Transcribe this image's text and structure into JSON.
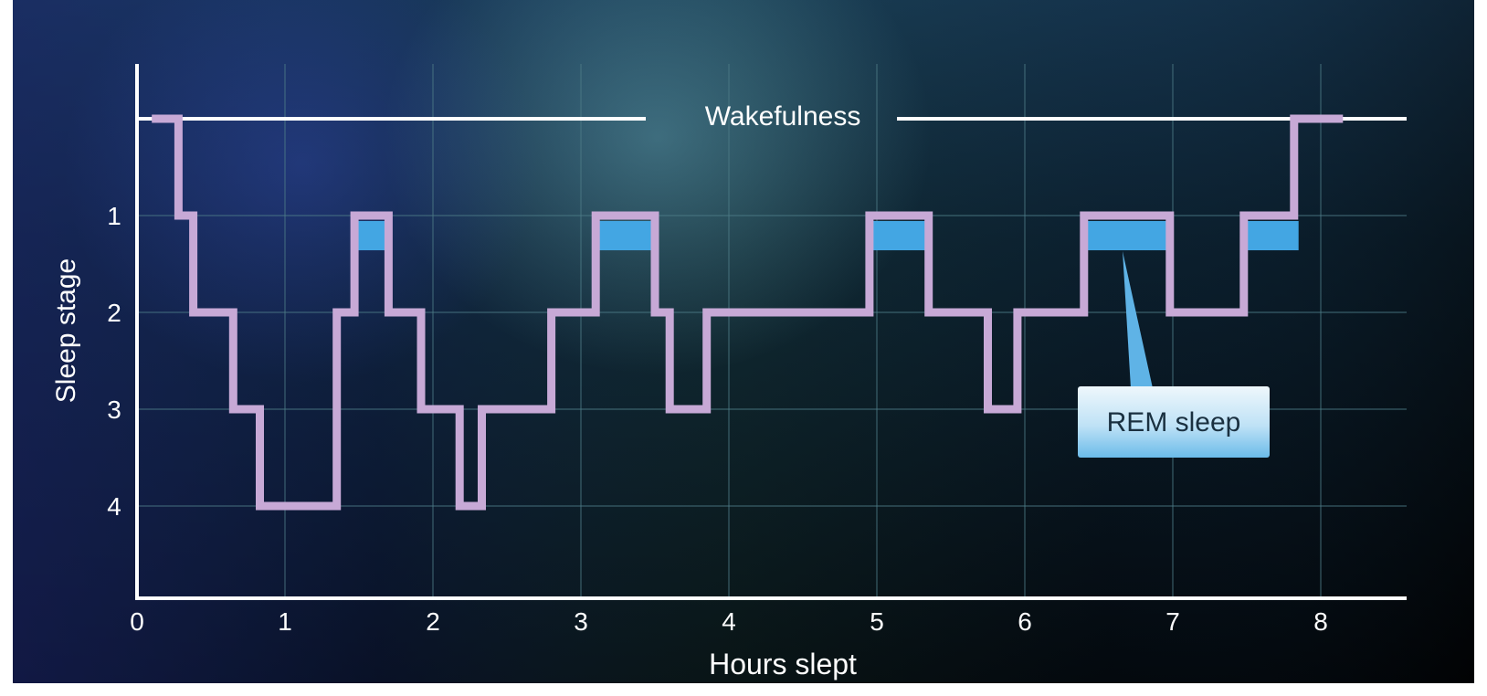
{
  "chart_data": {
    "type": "line",
    "title": "",
    "xlabel": "Hours slept",
    "ylabel": "Sleep stage",
    "xlim": [
      0,
      8.6
    ],
    "ylim": [
      5,
      -1
    ],
    "x_ticks": [
      "0",
      "1",
      "2",
      "3",
      "4",
      "5",
      "6",
      "7",
      "8"
    ],
    "y_ticks": [
      "1",
      "2",
      "3",
      "4"
    ],
    "grid": true,
    "wake_label": "Wakefulness",
    "annotation": "REM sleep",
    "colors": {
      "hypnogram_line": "#c7a9d6",
      "rem_fill": "#43a6e3",
      "axis": "#ffffff",
      "grid": "#4f7c88",
      "callout_top": "#eef7fc",
      "callout_bottom": "#7cc4ee"
    },
    "series": [
      {
        "type": "step",
        "x": [
          0.1,
          0.28,
          0.28,
          0.38,
          0.38,
          0.65,
          0.65,
          0.83,
          0.83,
          1.35,
          1.35,
          1.47,
          1.47,
          1.7,
          1.7,
          1.92,
          1.92,
          2.18,
          2.18,
          2.33,
          2.33,
          2.8,
          2.8,
          3.1,
          3.1,
          3.5,
          3.5,
          3.6,
          3.6,
          3.85,
          3.85,
          4.95,
          4.95,
          5.35,
          5.35,
          5.75,
          5.75,
          5.95,
          5.95,
          6.4,
          6.4,
          6.98,
          6.98,
          7.48,
          7.48,
          7.82,
          7.82,
          8.15
        ],
        "y": [
          0,
          0,
          1,
          1,
          2,
          2,
          3,
          3,
          4,
          4,
          2,
          2,
          1,
          1,
          2,
          2,
          3,
          3,
          4,
          4,
          3,
          3,
          2,
          2,
          1,
          1,
          2,
          2,
          3,
          3,
          2,
          2,
          1,
          1,
          2,
          2,
          3,
          3,
          2,
          2,
          1,
          1,
          2,
          2,
          1,
          1,
          0,
          0
        ]
      }
    ],
    "rem_periods": [
      {
        "start": 1.47,
        "end": 1.7
      },
      {
        "start": 3.1,
        "end": 3.5
      },
      {
        "start": 4.95,
        "end": 5.33
      },
      {
        "start": 6.4,
        "end": 6.98
      },
      {
        "start": 7.48,
        "end": 7.85
      }
    ]
  }
}
